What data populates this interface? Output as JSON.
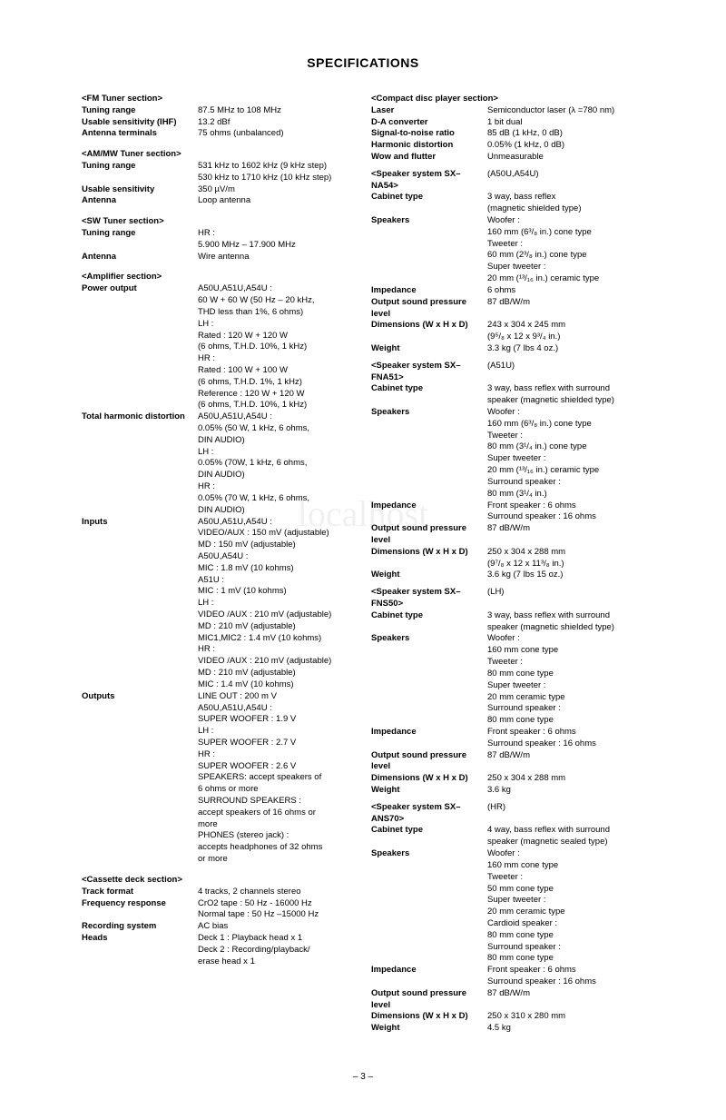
{
  "title": "SPECIFICATIONS",
  "page_number": "– 3 –",
  "left": [
    {
      "t": "s",
      "l": "<FM Tuner section>"
    },
    {
      "t": "r",
      "l": "Tuning range",
      "v": "87.5 MHz to 108 MHz"
    },
    {
      "t": "r",
      "l": "Usable sensitivity (IHF)",
      "v": "13.2 dBf"
    },
    {
      "t": "r",
      "l": "Antenna terminals",
      "v": "75 ohms (unbalanced)"
    },
    {
      "t": "g"
    },
    {
      "t": "s",
      "l": "<AM/MW Tuner section>"
    },
    {
      "t": "r",
      "l": "Tuning range",
      "v": "531 kHz to 1602 kHz (9 kHz step)"
    },
    {
      "t": "c",
      "v": "530 kHz to 1710 kHz (10 kHz step)"
    },
    {
      "t": "r",
      "l": "Usable sensitivity",
      "v": "350 µV/m"
    },
    {
      "t": "r",
      "l": "Antenna",
      "v": "Loop antenna"
    },
    {
      "t": "g"
    },
    {
      "t": "s",
      "l": "<SW Tuner section>"
    },
    {
      "t": "r",
      "l": "Tuning range",
      "v": "HR :"
    },
    {
      "t": "c",
      "v": "5.900 MHz – 17.900 MHz"
    },
    {
      "t": "r",
      "l": "Antenna",
      "v": "Wire antenna"
    },
    {
      "t": "g"
    },
    {
      "t": "s",
      "l": "<Amplifier section>"
    },
    {
      "t": "r",
      "l": "Power output",
      "v": "A50U,A51U,A54U :"
    },
    {
      "t": "c",
      "v": "60 W + 60 W (50 Hz – 20 kHz,"
    },
    {
      "t": "c",
      "v": "THD less than 1%, 6 ohms)"
    },
    {
      "t": "c",
      "v": "LH :"
    },
    {
      "t": "c",
      "v": "Rated : 120 W + 120 W"
    },
    {
      "t": "c",
      "v": "(6 ohms, T.H.D. 10%, 1 kHz)"
    },
    {
      "t": "c",
      "v": "HR :"
    },
    {
      "t": "c",
      "v": "Rated : 100 W + 100 W"
    },
    {
      "t": "c",
      "v": "(6 ohms, T.H.D. 1%, 1 kHz)"
    },
    {
      "t": "c",
      "v": "Reference : 120 W + 120 W"
    },
    {
      "t": "c",
      "v": "(6 ohms, T.H.D. 10%, 1 kHz)"
    },
    {
      "t": "r",
      "l": "Total harmonic distortion",
      "v": "A50U,A51U,A54U :"
    },
    {
      "t": "c",
      "v": "0.05% (50 W, 1 kHz, 6 ohms,"
    },
    {
      "t": "c",
      "v": "DIN AUDIO)"
    },
    {
      "t": "c",
      "v": "LH :"
    },
    {
      "t": "c",
      "v": "0.05% (70W, 1 kHz, 6 ohms,"
    },
    {
      "t": "c",
      "v": "DIN AUDIO)"
    },
    {
      "t": "c",
      "v": "HR :"
    },
    {
      "t": "c",
      "v": "0.05% (70 W, 1 kHz, 6 ohms,"
    },
    {
      "t": "c",
      "v": "DIN AUDIO)"
    },
    {
      "t": "r",
      "l": "Inputs",
      "v": "A50U,A51U,A54U :"
    },
    {
      "t": "c",
      "v": "VIDEO/AUX : 150 mV (adjustable)"
    },
    {
      "t": "c",
      "v": "MD : 150 mV (adjustable)"
    },
    {
      "t": "c",
      "v": "A50U,A54U :"
    },
    {
      "t": "c",
      "v": "MIC : 1.8 mV (10 kohms)"
    },
    {
      "t": "c",
      "v": "A51U :"
    },
    {
      "t": "c",
      "v": "MIC : 1 mV (10 kohms)"
    },
    {
      "t": "c",
      "v": "LH :"
    },
    {
      "t": "c",
      "v": "VIDEO /AUX : 210 mV (adjustable)"
    },
    {
      "t": "c",
      "v": "MD : 210 mV (adjustable)"
    },
    {
      "t": "c",
      "v": "MIC1,MIC2 : 1.4 mV (10 kohms)"
    },
    {
      "t": "c",
      "v": "HR :"
    },
    {
      "t": "c",
      "v": "VIDEO /AUX : 210 mV (adjustable)"
    },
    {
      "t": "c",
      "v": "MD : 210 mV (adjustable)"
    },
    {
      "t": "c",
      "v": "MIC : 1.4 mV (10 kohms)"
    },
    {
      "t": "r",
      "l": "Outputs",
      "v": "LINE OUT : 200 m V"
    },
    {
      "t": "c",
      "v": "A50U,A51U,A54U :"
    },
    {
      "t": "c",
      "v": "SUPER WOOFER : 1.9 V"
    },
    {
      "t": "c",
      "v": "LH :"
    },
    {
      "t": "c",
      "v": "SUPER WOOFER : 2.7 V"
    },
    {
      "t": "c",
      "v": "HR :"
    },
    {
      "t": "c",
      "v": "SUPER WOOFER : 2.6 V"
    },
    {
      "t": "c",
      "v": "SPEAKERS: accept speakers of"
    },
    {
      "t": "c",
      "v": "6 ohms or more"
    },
    {
      "t": "c",
      "v": "SURROUND SPEAKERS :"
    },
    {
      "t": "c",
      "v": "accept speakers of 16 ohms or"
    },
    {
      "t": "c",
      "v": "more"
    },
    {
      "t": "c",
      "v": "PHONES (stereo jack) :"
    },
    {
      "t": "c",
      "v": "accepts headphones of 32 ohms"
    },
    {
      "t": "c",
      "v": "or more"
    },
    {
      "t": "g"
    },
    {
      "t": "s",
      "l": "<Cassette deck section>"
    },
    {
      "t": "r",
      "l": "Track format",
      "v": "4 tracks, 2 channels stereo"
    },
    {
      "t": "r",
      "l": "Frequency response",
      "v": "CrO2 tape : 50 Hz - 16000 Hz"
    },
    {
      "t": "c",
      "v": "Normal tape : 50 Hz –15000 Hz"
    },
    {
      "t": "r",
      "l": "Recording system",
      "v": "AC bias"
    },
    {
      "t": "r",
      "l": "Heads",
      "v": "Deck 1 : Playback head x 1"
    },
    {
      "t": "c",
      "v": "Deck 2 : Recording/playback/"
    },
    {
      "t": "c",
      "v": "              erase head x 1"
    }
  ],
  "right": [
    {
      "t": "s",
      "l": "<Compact disc player section>"
    },
    {
      "t": "r",
      "l": "Laser",
      "v": "Semiconductor laser (λ =780 nm)"
    },
    {
      "t": "r",
      "l": "D-A converter",
      "v": "1 bit dual"
    },
    {
      "t": "r",
      "l": "Signal-to-noise ratio",
      "v": "85 dB (1 kHz, 0 dB)"
    },
    {
      "t": "r",
      "l": "Harmonic distortion",
      "v": "0.05% (1 kHz, 0 dB)"
    },
    {
      "t": "r",
      "l": "Wow and flutter",
      "v": "Unmeasurable"
    },
    {
      "t": "g"
    },
    {
      "t": "r",
      "l": "<Speaker system SX–NA54>",
      "v": "(A50U,A54U)"
    },
    {
      "t": "r",
      "l": "Cabinet type",
      "v": "3 way, bass reflex"
    },
    {
      "t": "c",
      "v": "(magnetic shielded type)"
    },
    {
      "t": "r",
      "l": "Speakers",
      "v": "Woofer :"
    },
    {
      "t": "c",
      "v": "160 mm (6³/₈ in.) cone type"
    },
    {
      "t": "c",
      "v": "Tweeter :"
    },
    {
      "t": "c",
      "v": "60 mm (2³/₈ in.) cone type"
    },
    {
      "t": "c",
      "v": "Super tweeter :"
    },
    {
      "t": "c",
      "v": "20 mm (¹³/₁₆ in.) ceramic type"
    },
    {
      "t": "r",
      "l": "Impedance",
      "v": "6 ohms"
    },
    {
      "t": "r",
      "l": "Output sound pressure level",
      "v": "87 dB/W/m"
    },
    {
      "t": "r",
      "l": "Dimensions (W x H x D)",
      "v": "243 x 304 x 245 mm"
    },
    {
      "t": "c",
      "v": "(9⁵/₈ x 12 x 9³/₄ in.)"
    },
    {
      "t": "r",
      "l": "Weight",
      "v": "3.3 kg (7 lbs 4 oz.)"
    },
    {
      "t": "g"
    },
    {
      "t": "r",
      "l": "<Speaker system SX–FNA51>",
      "v": "(A51U)"
    },
    {
      "t": "r",
      "l": "Cabinet type",
      "v": "3 way, bass reflex with surround"
    },
    {
      "t": "c",
      "v": "speaker (magnetic shielded type)"
    },
    {
      "t": "r",
      "l": "Speakers",
      "v": "Woofer :"
    },
    {
      "t": "c",
      "v": "160 mm (6³/₈ in.) cone type"
    },
    {
      "t": "c",
      "v": "Tweeter :"
    },
    {
      "t": "c",
      "v": "80 mm (3¹/₄ in.) cone type"
    },
    {
      "t": "c",
      "v": "Super tweeter :"
    },
    {
      "t": "c",
      "v": "20 mm (¹³/₁₆ in.) ceramic type"
    },
    {
      "t": "c",
      "v": "Surround speaker :"
    },
    {
      "t": "c",
      "v": "80 mm (3¹/₄ in.)"
    },
    {
      "t": "r",
      "l": "Impedance",
      "v": "Front speaker : 6 ohms"
    },
    {
      "t": "c",
      "v": "Surround speaker : 16 ohms"
    },
    {
      "t": "r",
      "l": "Output sound pressure level",
      "v": "87 dB/W/m"
    },
    {
      "t": "r",
      "l": "Dimensions (W x H x D)",
      "v": "250 x 304 x 288 mm"
    },
    {
      "t": "c",
      "v": "(9⁷/₈ x 12 x 11³/₈ in.)"
    },
    {
      "t": "r",
      "l": "Weight",
      "v": "3.6 kg (7 lbs 15 oz.)"
    },
    {
      "t": "g"
    },
    {
      "t": "r",
      "l": "<Speaker system SX–FNS50>",
      "v": "(LH)"
    },
    {
      "t": "r",
      "l": "Cabinet type",
      "v": "3 way, bass reflex with surround"
    },
    {
      "t": "c",
      "v": "speaker (magnetic shielded type)"
    },
    {
      "t": "r",
      "l": "Speakers",
      "v": "Woofer :"
    },
    {
      "t": "c",
      "v": "160 mm cone type"
    },
    {
      "t": "c",
      "v": "Tweeter :"
    },
    {
      "t": "c",
      "v": "80 mm cone type"
    },
    {
      "t": "c",
      "v": "Super tweeter :"
    },
    {
      "t": "c",
      "v": "20 mm ceramic type"
    },
    {
      "t": "c",
      "v": "Surround speaker :"
    },
    {
      "t": "c",
      "v": "80 mm cone type"
    },
    {
      "t": "r",
      "l": "Impedance",
      "v": "Front speaker : 6 ohms"
    },
    {
      "t": "c",
      "v": "Surround speaker : 16 ohms"
    },
    {
      "t": "r",
      "l": "Output sound pressure level",
      "v": "87 dB/W/m"
    },
    {
      "t": "r",
      "l": "Dimensions (W x H x D)",
      "v": "250 x 304 x 288 mm"
    },
    {
      "t": "r",
      "l": "Weight",
      "v": "3.6 kg"
    },
    {
      "t": "g"
    },
    {
      "t": "r",
      "l": "<Speaker system SX–ANS70>",
      "v": "(HR)"
    },
    {
      "t": "r",
      "l": "Cabinet type",
      "v": "4 way, bass reflex with surround"
    },
    {
      "t": "c",
      "v": "speaker (magnetic sealed type)"
    },
    {
      "t": "r",
      "l": "Speakers",
      "v": "Woofer :"
    },
    {
      "t": "c",
      "v": "160 mm cone type"
    },
    {
      "t": "c",
      "v": "Tweeter :"
    },
    {
      "t": "c",
      "v": "50 mm cone type"
    },
    {
      "t": "c",
      "v": "Super tweeter :"
    },
    {
      "t": "c",
      "v": "20 mm ceramic type"
    },
    {
      "t": "c",
      "v": "Cardioid speaker :"
    },
    {
      "t": "c",
      "v": "80 mm cone type"
    },
    {
      "t": "c",
      "v": "Surround speaker :"
    },
    {
      "t": "c",
      "v": "80 mm cone type"
    },
    {
      "t": "r",
      "l": "Impedance",
      "v": "Front speaker : 6 ohms"
    },
    {
      "t": "c",
      "v": "Surround speaker : 16 ohms"
    },
    {
      "t": "r",
      "l": "Output sound pressure level",
      "v": "87 dB/W/m"
    },
    {
      "t": "r",
      "l": "Dimensions (W x H x D)",
      "v": "250 x 310 x 280 mm"
    },
    {
      "t": "r",
      "l": "Weight",
      "v": "4.5 kg"
    }
  ]
}
